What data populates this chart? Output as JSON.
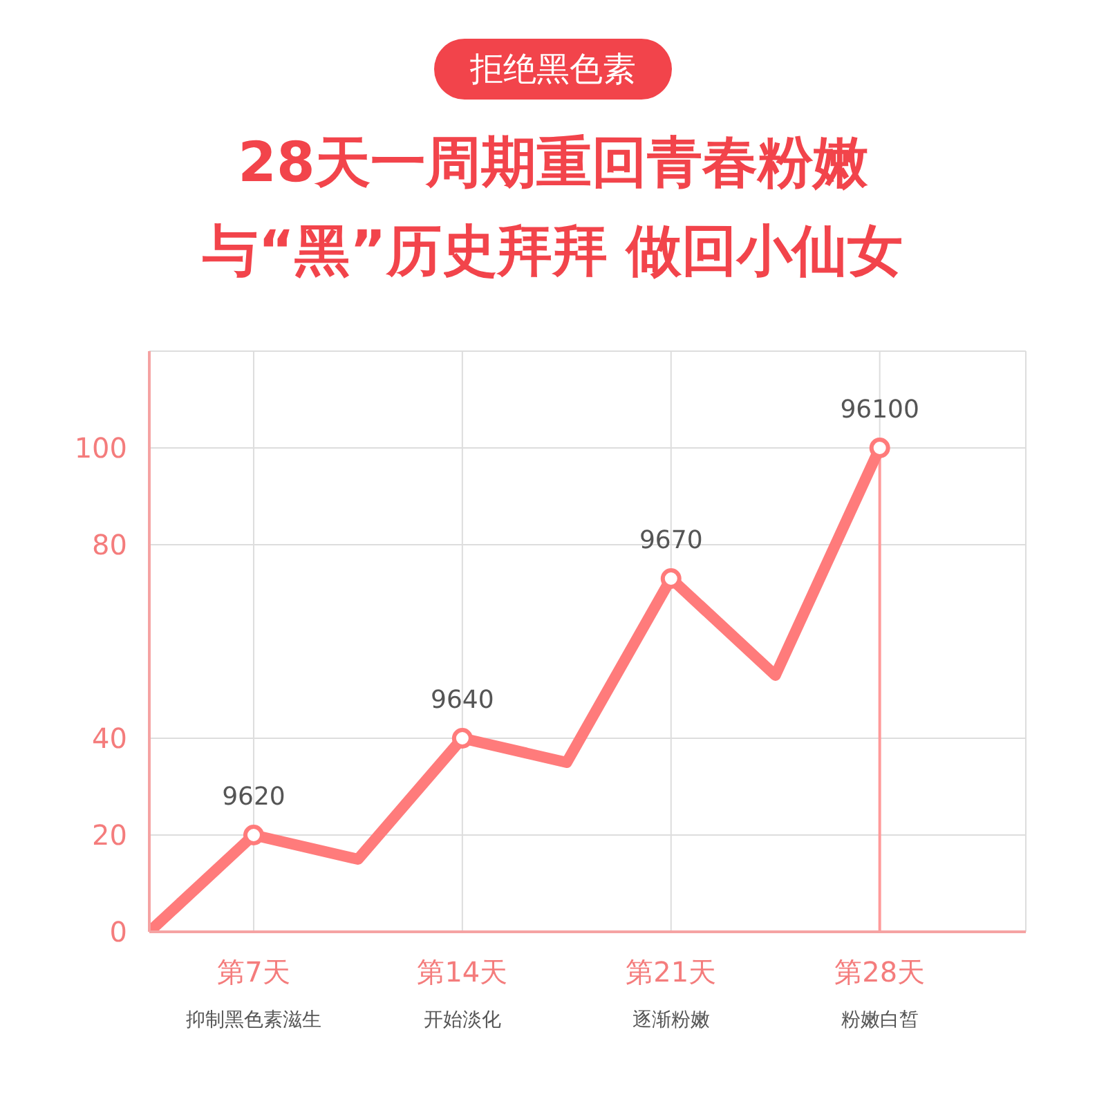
{
  "chart_data": {
    "type": "line",
    "title": "28天一周期重回青春粉嫩",
    "subtitle": "与“黑”历史拜拜 做回小仙女",
    "categories": [
      null,
      "第7天",
      null,
      "第14天",
      null,
      "第21天",
      null,
      "第28天"
    ],
    "series": [
      {
        "color": "#ff7b7b",
        "values": [
          0,
          20,
          15,
          40,
          35,
          73,
          53,
          100
        ]
      }
    ],
    "ylim": [
      0,
      120
    ],
    "yticks": [
      0,
      20,
      40,
      80,
      100
    ],
    "grid": true,
    "marker": "circle",
    "line_style": "solid",
    "annotations": [
      "拒绝黑色素",
      {
        "text": "9620",
        "x": "第7天",
        "y": 20
      },
      {
        "text": "9640",
        "x": "第14天",
        "y": 40
      },
      {
        "text": "9670",
        "x": "第21天",
        "y": 73
      },
      {
        "text": "96100",
        "x": "第28天",
        "y": 100
      },
      "抑制黑色素滋生",
      "开始淡化",
      "逐渐粉嫩",
      "粉嫩白皙"
    ],
    "ref_lines": [
      {
        "axis": "x",
        "value": "第28天",
        "color": "#ff9a9a"
      }
    ]
  }
}
